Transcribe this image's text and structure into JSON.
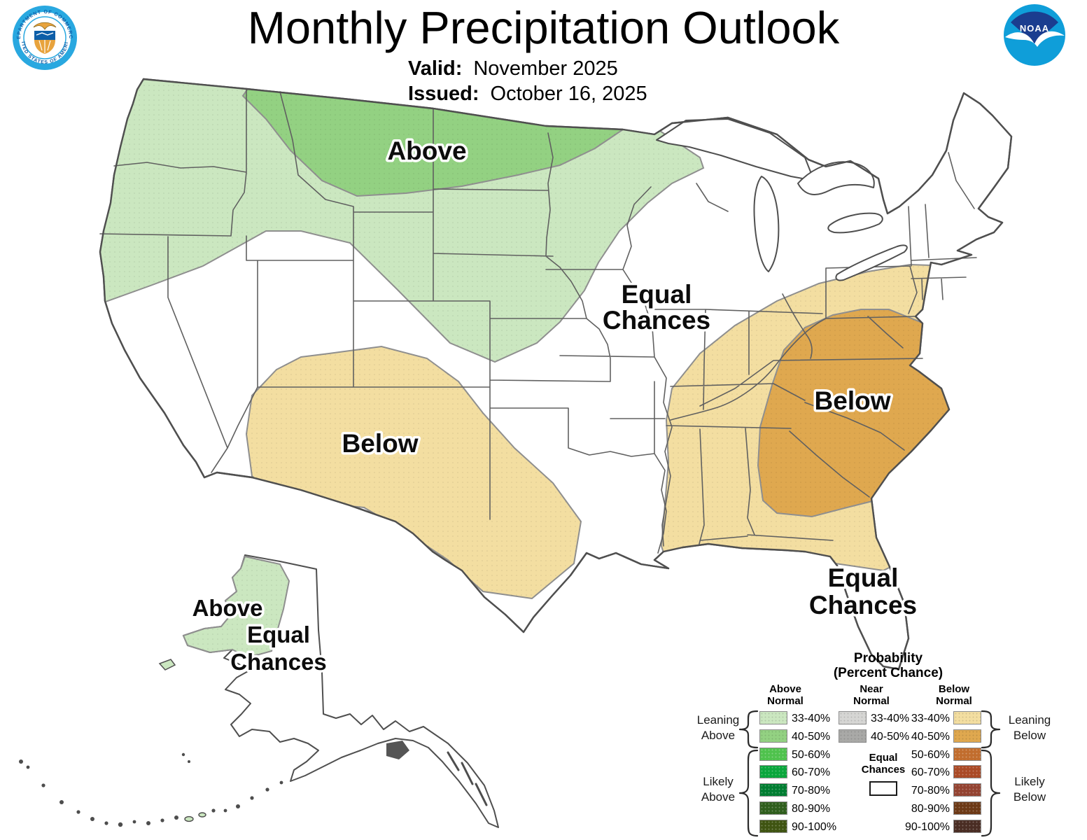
{
  "header": {
    "title": "Monthly Precipitation Outlook",
    "valid_label": "Valid:",
    "valid_value": "November 2025",
    "issued_label": "Issued:",
    "issued_value": "October 16, 2025"
  },
  "logos": {
    "noaa_text": "NOAA",
    "doc_ring_top": "DEPARTMENT OF COMMERCE",
    "doc_ring_bottom": "UNITED STATES OF AMERICA"
  },
  "map_labels": {
    "north_above": "Above",
    "midwest_equal_line1": "Equal",
    "midwest_equal_line2": "Chances",
    "southwest_below": "Below",
    "southeast_below": "Below",
    "florida_equal_line1": "Equal",
    "florida_equal_line2": "Chances",
    "alaska_above": "Above",
    "alaska_equal_line1": "Equal",
    "alaska_equal_line2": "Chances"
  },
  "legend": {
    "title_line1": "Probability",
    "title_line2": "(Percent Chance)",
    "above": {
      "header_line1": "Above",
      "header_line2": "Normal",
      "rows": [
        {
          "label": "33-40%",
          "color": "#cbe7c0"
        },
        {
          "label": "40-50%",
          "color": "#93d182"
        },
        {
          "label": "50-60%",
          "color": "#4fc24d"
        },
        {
          "label": "60-70%",
          "color": "#0aa63c"
        },
        {
          "label": "70-80%",
          "color": "#017d31"
        },
        {
          "label": "80-90%",
          "color": "#2f5e1d"
        },
        {
          "label": "90-100%",
          "color": "#3f5412"
        }
      ]
    },
    "near": {
      "header_line1": "Near",
      "header_line2": "Normal",
      "rows": [
        {
          "label": "33-40%",
          "color": "#d6d6d4"
        },
        {
          "label": "40-50%",
          "color": "#a9a9a7"
        }
      ],
      "equal_line1": "Equal",
      "equal_line2": "Chances"
    },
    "below": {
      "header_line1": "Below",
      "header_line2": "Normal",
      "rows": [
        {
          "label": "33-40%",
          "color": "#f3dea1"
        },
        {
          "label": "40-50%",
          "color": "#dfa84f"
        },
        {
          "label": "50-60%",
          "color": "#c16d2e"
        },
        {
          "label": "60-70%",
          "color": "#aa4a26"
        },
        {
          "label": "70-80%",
          "color": "#934331"
        },
        {
          "label": "80-90%",
          "color": "#6c3916"
        },
        {
          "label": "90-100%",
          "color": "#4a2d24"
        }
      ]
    },
    "side_labels": {
      "leaning_above_line1": "Leaning",
      "leaning_above_line2": "Above",
      "likely_above_line1": "Likely",
      "likely_above_line2": "Above",
      "leaning_below_line1": "Leaning",
      "leaning_below_line2": "Below",
      "likely_below_line1": "Likely",
      "likely_below_line2": "Below"
    }
  },
  "colors": {
    "above_33_40": "#cbe7c0",
    "above_40_50": "#93d182",
    "below_33_40": "#f3dea1",
    "below_40_50": "#dfa84f",
    "map_outline": "#4f4f4f",
    "state_line": "#606060",
    "region_edge": "#8f8f8f",
    "noaa_dark_blue": "#1b3d8f",
    "noaa_light_blue": "#0f9ed9",
    "doc_cyan": "#29a8e0",
    "doc_navy": "#0d5ea8",
    "doc_gold": "#e8a33d"
  }
}
